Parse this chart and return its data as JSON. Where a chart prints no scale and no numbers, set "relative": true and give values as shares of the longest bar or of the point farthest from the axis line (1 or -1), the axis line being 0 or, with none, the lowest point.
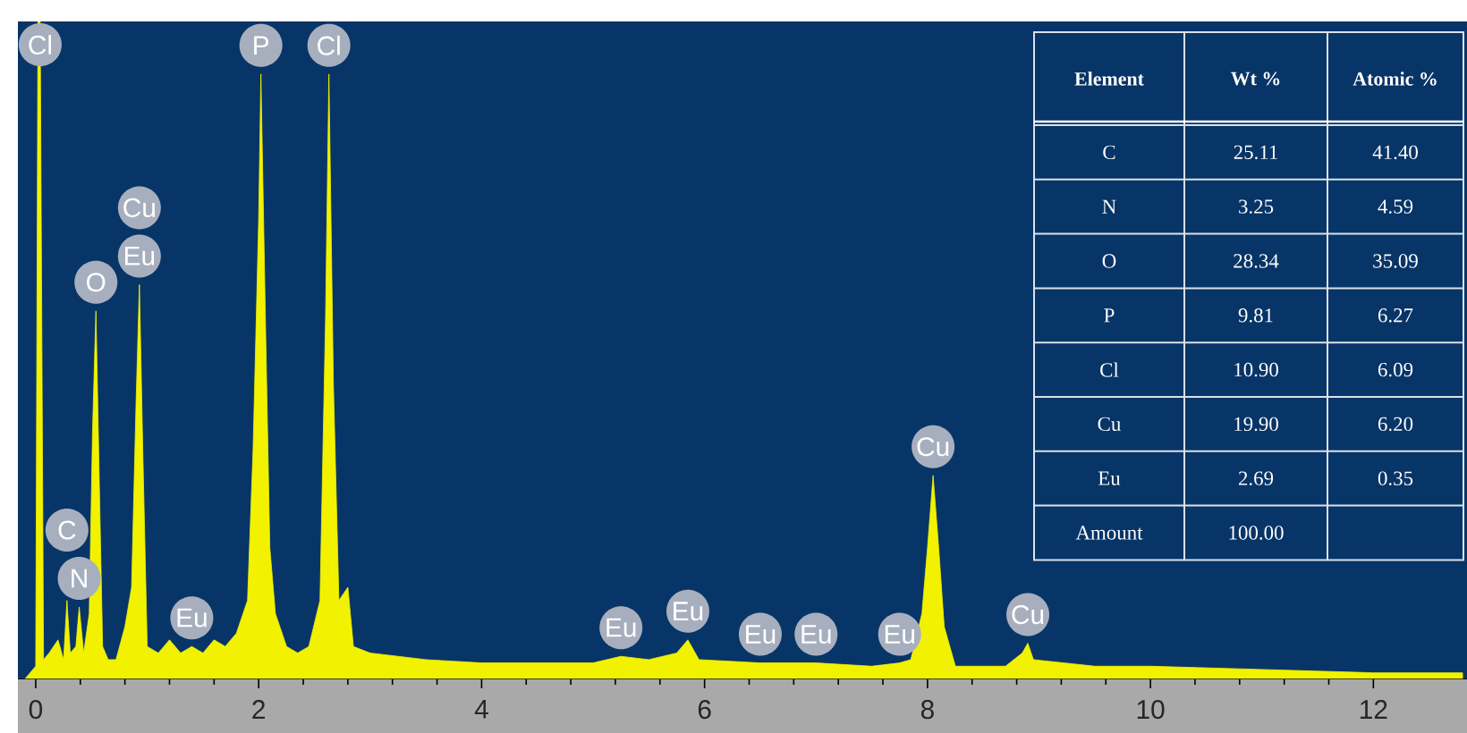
{
  "chart_data": [
    {
      "type": "area",
      "relative": true,
      "xlim": [
        -0.16,
        12.84
      ],
      "xticks": [
        0,
        2,
        4,
        6,
        8,
        10,
        12
      ],
      "x": [
        -0.1,
        0.0,
        0.02,
        0.04,
        0.07,
        0.12,
        0.2,
        0.25,
        0.28,
        0.31,
        0.36,
        0.39,
        0.43,
        0.48,
        0.51,
        0.54,
        0.57,
        0.6,
        0.65,
        0.72,
        0.8,
        0.86,
        0.9,
        0.93,
        0.96,
        1.0,
        1.1,
        1.2,
        1.3,
        1.4,
        1.5,
        1.6,
        1.7,
        1.8,
        1.9,
        1.95,
        2.0,
        2.02,
        2.06,
        2.1,
        2.15,
        2.25,
        2.35,
        2.45,
        2.55,
        2.6,
        2.63,
        2.67,
        2.72,
        2.8,
        2.85,
        3.0,
        3.5,
        4.0,
        4.5,
        5.0,
        5.25,
        5.5,
        5.75,
        5.85,
        5.95,
        6.5,
        7.0,
        7.5,
        7.75,
        7.85,
        7.95,
        8.0,
        8.05,
        8.1,
        8.15,
        8.25,
        8.7,
        8.85,
        8.9,
        8.95,
        9.5,
        10.0,
        11.0,
        12.0,
        12.8
      ],
      "series": [
        {
          "color": "#f2f200",
          "values": [
            0,
            0.02,
            1.0,
            1.0,
            0.03,
            0.04,
            0.06,
            0.03,
            0.12,
            0.04,
            0.05,
            0.11,
            0.04,
            0.1,
            0.38,
            0.56,
            0.3,
            0.05,
            0.03,
            0.03,
            0.08,
            0.14,
            0.42,
            0.6,
            0.35,
            0.05,
            0.04,
            0.06,
            0.04,
            0.05,
            0.04,
            0.06,
            0.05,
            0.07,
            0.12,
            0.35,
            0.7,
            0.92,
            0.55,
            0.2,
            0.1,
            0.05,
            0.04,
            0.05,
            0.12,
            0.55,
            0.92,
            0.45,
            0.12,
            0.14,
            0.05,
            0.04,
            0.03,
            0.025,
            0.025,
            0.025,
            0.035,
            0.03,
            0.04,
            0.06,
            0.03,
            0.025,
            0.025,
            0.02,
            0.025,
            0.03,
            0.1,
            0.2,
            0.31,
            0.2,
            0.08,
            0.02,
            0.02,
            0.04,
            0.055,
            0.03,
            0.02,
            0.02,
            0.015,
            0.01,
            0.01
          ]
        }
      ],
      "annotations": [
        {
          "text": "Cl",
          "x": 0.04,
          "y": 1.0
        },
        {
          "text": "O",
          "x": 0.54,
          "y": 0.56
        },
        {
          "text": "Eu",
          "x": 0.93,
          "y": 0.6
        },
        {
          "text": "Cu",
          "x": 0.93,
          "y": 0.6
        },
        {
          "text": "P",
          "x": 2.02,
          "y": 0.92
        },
        {
          "text": "Cl",
          "x": 2.63,
          "y": 0.92
        },
        {
          "text": "N",
          "x": 0.39,
          "y": 0.11
        },
        {
          "text": "C",
          "x": 0.28,
          "y": 0.12
        },
        {
          "text": "Eu",
          "x": 1.4,
          "y": 0.05
        },
        {
          "text": "Eu",
          "x": 5.25,
          "y": 0.035
        },
        {
          "text": "Eu",
          "x": 5.85,
          "y": 0.06
        },
        {
          "text": "Eu",
          "x": 6.5,
          "y": 0.025
        },
        {
          "text": "Eu",
          "x": 7.0,
          "y": 0.025
        },
        {
          "text": "Eu",
          "x": 7.75,
          "y": 0.025
        },
        {
          "text": "Cu",
          "x": 8.05,
          "y": 0.31
        },
        {
          "text": "Cu",
          "x": 8.9,
          "y": 0.055
        }
      ]
    },
    {
      "type": "other",
      "annotations": [
        "Element",
        "Wt %",
        "Atomic %",
        "C",
        "25.11",
        "41.40",
        "N",
        "3.25",
        "4.59",
        "O",
        "28.34",
        "35.09",
        "P",
        "9.81",
        "6.27",
        "Cl",
        "10.90",
        "6.09",
        "Cu",
        "19.90",
        "6.20",
        "Eu",
        "2.69",
        "0.35",
        "Amount",
        "100.00"
      ]
    }
  ]
}
